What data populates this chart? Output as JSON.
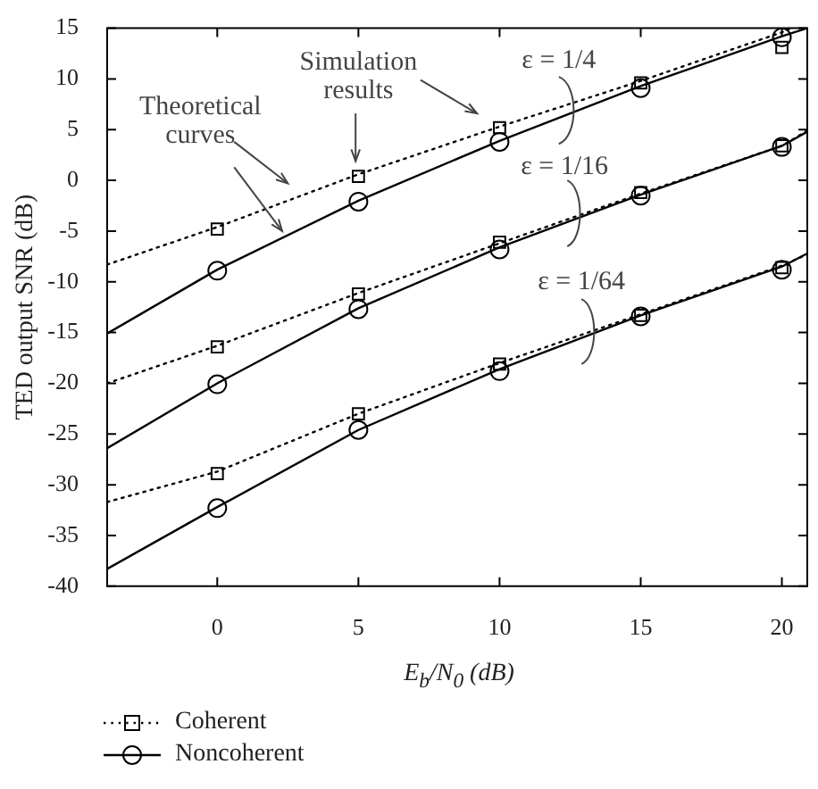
{
  "chart_data": {
    "type": "line",
    "xlabel": "E$_{b}$/N$_{0}$ (dB)",
    "ylabel": "TED output SNR (dB)",
    "xlim": [
      -3.9,
      20.9
    ],
    "xticks": [
      0,
      5,
      10,
      15,
      20
    ],
    "ylim": [
      -40,
      15
    ],
    "yticks": [
      -40,
      -35,
      -30,
      -25,
      -20,
      -15,
      -10,
      -5,
      0,
      5,
      10,
      15
    ],
    "legend": "bottom left",
    "annotations": [
      "Simulation results",
      "Theoretical curves",
      "ε = 1/4",
      "ε = 1/16",
      "ε = 1/64"
    ],
    "series": [
      {
        "name": "Coherent",
        "color": "#000000",
        "line_style": "dotted",
        "marker": "none",
        "x": [
          -3.9,
          0,
          5,
          10,
          15,
          20,
          20.3
        ],
        "values": [
          -8.3,
          -4.6,
          0.6,
          5.3,
          9.8,
          14.6,
          15
        ]
      },
      {
        "type": "scatter",
        "color": "#000000",
        "marker": "square",
        "x": [
          0,
          5,
          10,
          15,
          20
        ],
        "values": [
          -4.8,
          0.4,
          5.2,
          9.6,
          13.1
        ]
      },
      {
        "name": "Noncoherent",
        "color": "#000000",
        "line_style": "solid",
        "marker": "none",
        "x": [
          -3.9,
          0,
          5,
          10,
          15,
          20,
          20.9
        ],
        "values": [
          -15.1,
          -8.8,
          -2.0,
          3.9,
          9.3,
          14.2,
          15
        ]
      },
      {
        "type": "scatter",
        "color": "#000000",
        "marker": "circle",
        "x": [
          0,
          5,
          10,
          15,
          20
        ],
        "values": [
          -8.9,
          -2.1,
          3.8,
          9.1,
          14.1
        ]
      },
      {
        "type": "line",
        "color": "#000000",
        "line_style": "dotted",
        "marker": "none",
        "x": [
          -3.9,
          0,
          5,
          10,
          15,
          20,
          20.9
        ],
        "values": [
          -20,
          -16.3,
          -11.1,
          -6.2,
          -1.3,
          3.4,
          4.9
        ]
      },
      {
        "type": "scatter",
        "color": "#000000",
        "marker": "square",
        "x": [
          0,
          5,
          10,
          15,
          20
        ],
        "values": [
          -16.4,
          -11.2,
          -6.1,
          -1.2,
          3.4
        ]
      },
      {
        "type": "line",
        "color": "#000000",
        "line_style": "solid",
        "marker": "none",
        "x": [
          -3.9,
          0,
          5,
          10,
          15,
          20,
          20.9
        ],
        "values": [
          -26.4,
          -20.0,
          -12.6,
          -6.6,
          -1.4,
          3.4,
          4.8
        ]
      },
      {
        "type": "scatter",
        "color": "#000000",
        "marker": "circle",
        "x": [
          0,
          5,
          10,
          15,
          20
        ],
        "values": [
          -20.1,
          -12.7,
          -6.8,
          -1.5,
          3.3
        ]
      },
      {
        "type": "line",
        "color": "#000000",
        "line_style": "dotted",
        "marker": "none",
        "x": [
          -3.9,
          0,
          5,
          10,
          15,
          20,
          20.9
        ],
        "values": [
          -31.7,
          -28.7,
          -23.0,
          -18.0,
          -13.2,
          -8.4,
          -7.3
        ]
      },
      {
        "type": "scatter",
        "color": "#000000",
        "marker": "square",
        "x": [
          0,
          5,
          10,
          15,
          20
        ],
        "values": [
          -28.9,
          -23.0,
          -18.1,
          -13.3,
          -8.6
        ]
      },
      {
        "type": "line",
        "color": "#000000",
        "line_style": "solid",
        "marker": "none",
        "x": [
          -3.9,
          0,
          5,
          10,
          15,
          20,
          20.9
        ],
        "values": [
          -38.3,
          -32.2,
          -24.6,
          -18.6,
          -13.3,
          -8.5,
          -7.2
        ]
      },
      {
        "type": "scatter",
        "color": "#000000",
        "marker": "circle",
        "x": [
          0,
          5,
          10,
          15,
          20
        ],
        "values": [
          -32.3,
          -24.6,
          -18.8,
          -13.4,
          -8.8
        ]
      }
    ]
  }
}
